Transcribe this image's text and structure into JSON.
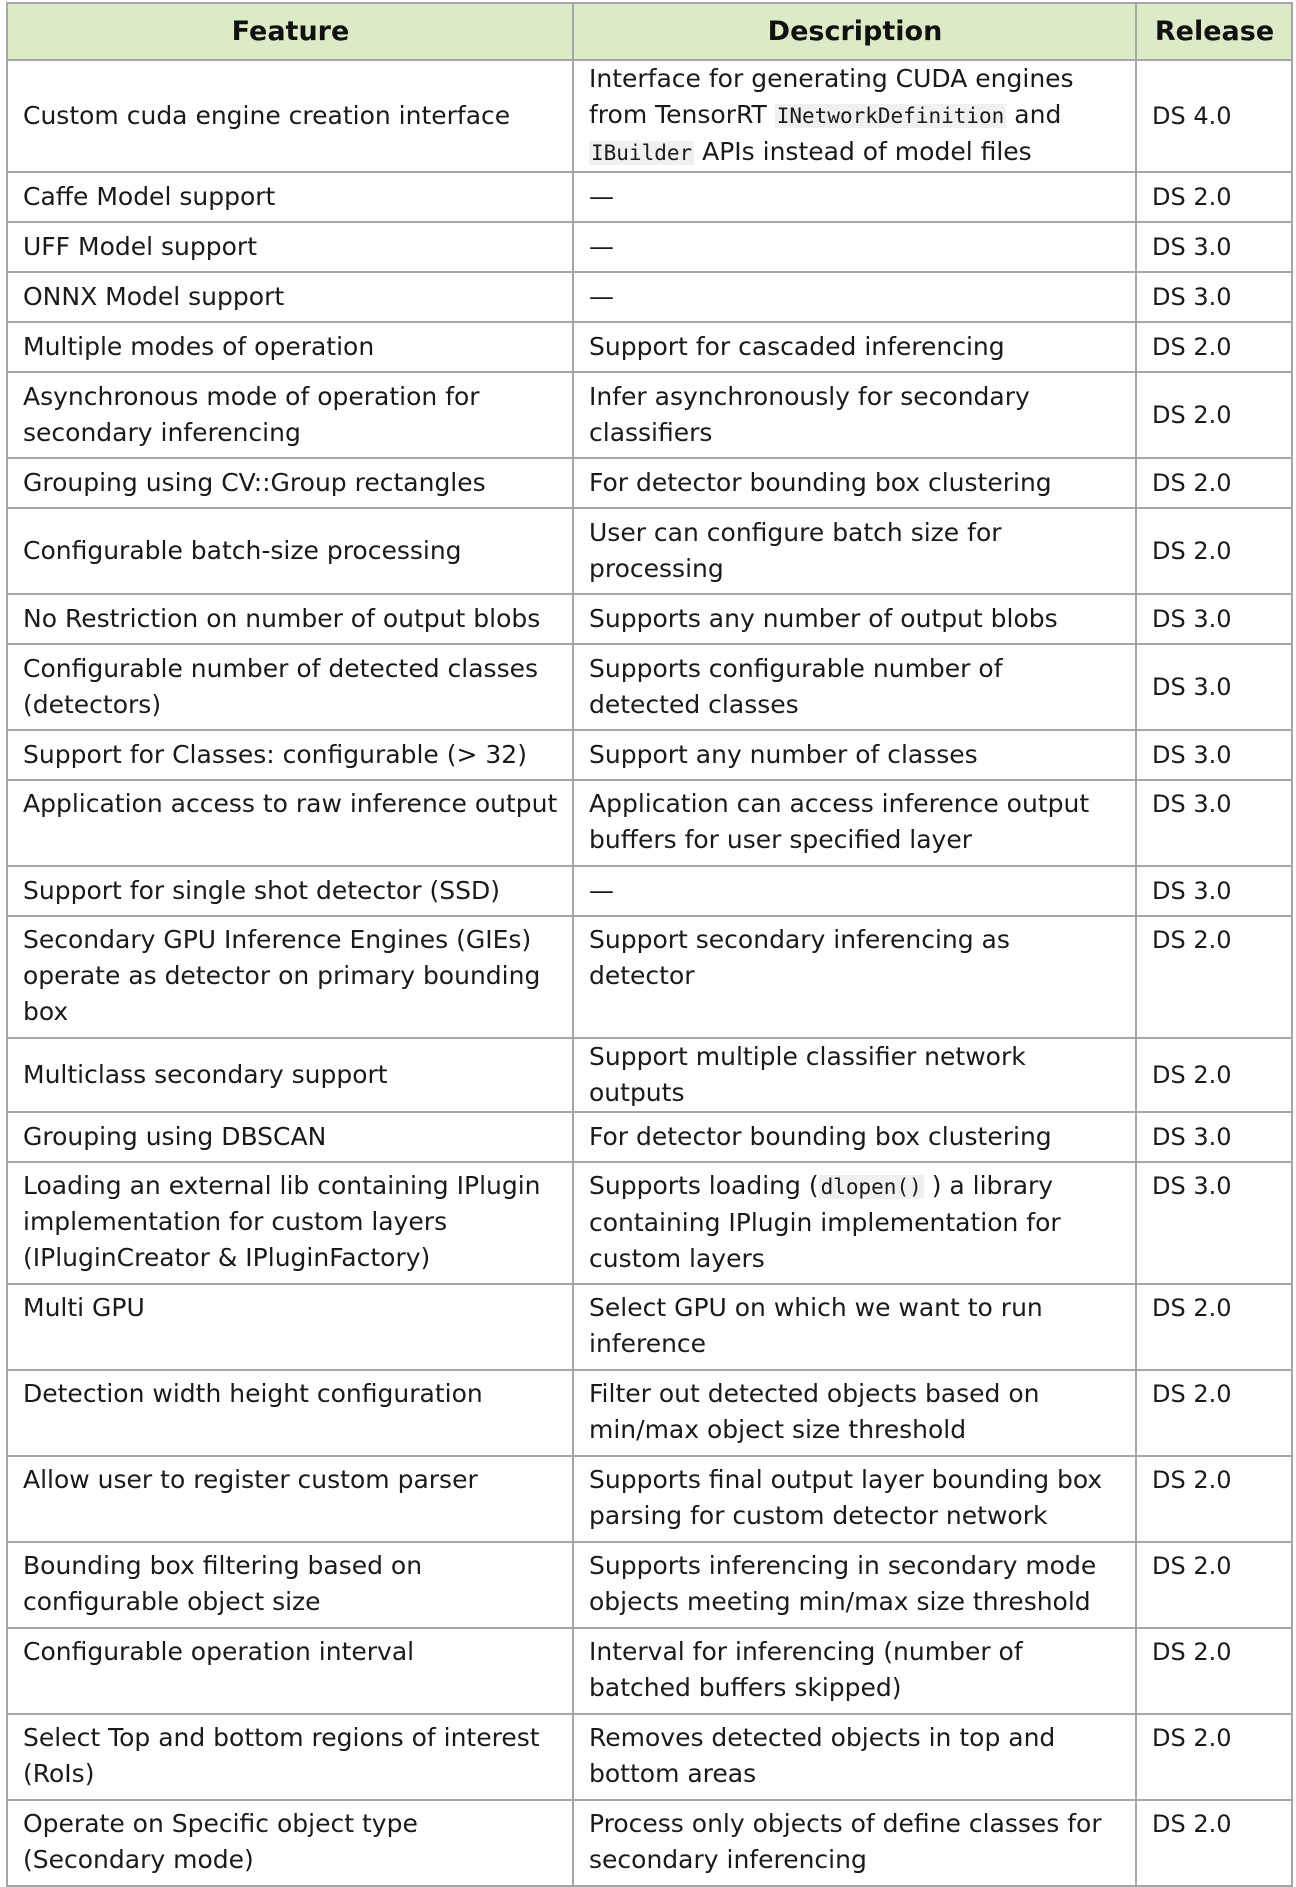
{
  "table": {
    "headers": {
      "feature": "Feature",
      "description": "Description",
      "release": "Release"
    },
    "rows": [
      {
        "feature": "Custom cuda engine creation interface",
        "description": {
          "t1": "Interface for generating CUDA engines from TensorRT ",
          "c1": "INetworkDefinition",
          "t2": " and ",
          "c2": "IBuilder",
          "t3": " APIs instead of model files"
        },
        "release": "DS 4.0"
      },
      {
        "feature": "Caffe Model support",
        "description": "—",
        "release": "DS 2.0"
      },
      {
        "feature": "UFF Model support",
        "description": "—",
        "release": "DS 3.0"
      },
      {
        "feature": "ONNX Model support",
        "description": "—",
        "release": "DS 3.0"
      },
      {
        "feature": "Multiple modes of operation",
        "description": "Support for cascaded inferencing",
        "release": "DS 2.0"
      },
      {
        "feature": "Asynchronous mode of operation for secondary inferencing",
        "description": "Infer asynchronously for secondary classifiers",
        "release": "DS 2.0"
      },
      {
        "feature": "Grouping using CV::Group rectangles",
        "description": "For detector bounding box clustering",
        "release": "DS 2.0"
      },
      {
        "feature": "Configurable batch-size processing",
        "description": "User can configure batch size for processing",
        "release": "DS 2.0"
      },
      {
        "feature": "No Restriction on number of output blobs",
        "description": "Supports any number of output blobs",
        "release": "DS 3.0"
      },
      {
        "feature": "Configurable number of detected classes (detectors)",
        "description": "Supports configurable number of detected classes",
        "release": "DS 3.0"
      },
      {
        "feature": "Support for Classes: configurable (> 32)",
        "description": "Support any number of classes",
        "release": "DS 3.0"
      },
      {
        "feature": "Application access to raw inference output",
        "description": "Application can access inference output buffers for user specified layer",
        "release": "DS 3.0"
      },
      {
        "feature": "Support for single shot detector (SSD)",
        "description": "—",
        "release": "DS 3.0"
      },
      {
        "feature": "Secondary GPU Inference Engines (GIEs) operate as detector on primary bounding box",
        "description": "Support secondary inferencing as detector",
        "release": "DS 2.0"
      },
      {
        "feature": "Multiclass secondary support",
        "description": "Support multiple classifier network outputs",
        "release": "DS 2.0"
      },
      {
        "feature": "Grouping using DBSCAN",
        "description": "For detector bounding box clustering",
        "release": "DS 3.0"
      },
      {
        "feature": "Loading an external lib containing IPlugin implementation for custom layers (IPluginCreator & IPluginFactory)",
        "description": {
          "t1": "Supports loading (",
          "c1": "dlopen()",
          "t2": " ) a library containing IPlugin implementation for custom layers"
        },
        "release": "DS 3.0"
      },
      {
        "feature": "Multi GPU",
        "description": "Select GPU on which we want to run inference",
        "release": "DS 2.0"
      },
      {
        "feature": "Detection width height configuration",
        "description": "Filter out detected objects based on min/max object size threshold",
        "release": "DS 2.0"
      },
      {
        "feature": "Allow user to register custom parser",
        "description": "Supports final output layer bounding box parsing for custom detector network",
        "release": "DS 2.0"
      },
      {
        "feature": "Bounding box filtering based on configurable object size",
        "description": "Supports inferencing in secondary mode objects meeting min/max size threshold",
        "release": "DS 2.0"
      },
      {
        "feature": "Configurable operation interval",
        "description": "Interval for inferencing (number of batched buffers skipped)",
        "release": "DS 2.0"
      },
      {
        "feature": "Select Top and bottom regions of interest (RoIs)",
        "description": "Removes detected objects in top and bottom areas",
        "release": "DS 2.0"
      },
      {
        "feature": "Operate on Specific object type (Secondary mode)",
        "description": "Process only objects of define classes for secondary inferencing",
        "release": "DS 2.0"
      }
    ]
  }
}
